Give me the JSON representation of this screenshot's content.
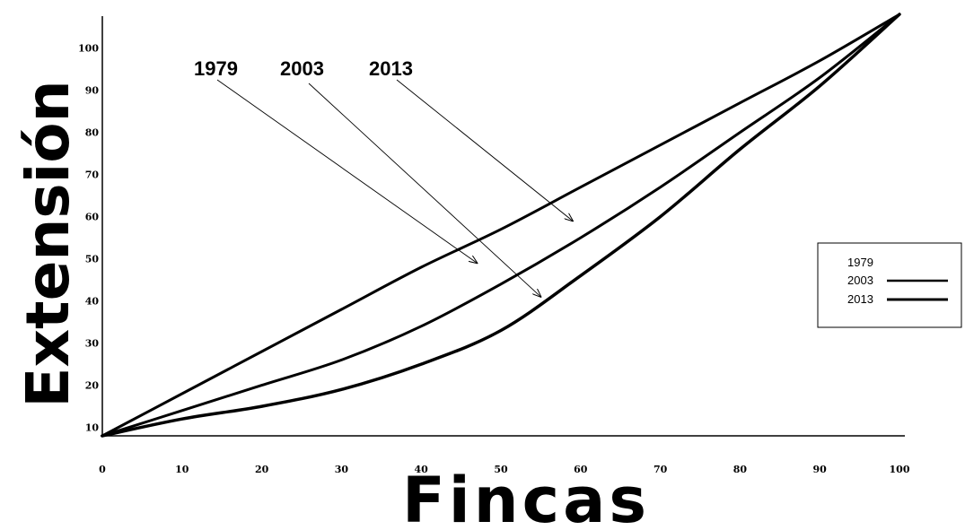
{
  "chart_data": {
    "type": "line",
    "xlabel": "Fincas",
    "ylabel": "Extensión",
    "xlim": [
      0,
      100
    ],
    "ylim": [
      8,
      108
    ],
    "x_ticks": [
      "0",
      "10",
      "20",
      "30",
      "40",
      "50",
      "60",
      "70",
      "80",
      "90",
      "100"
    ],
    "y_ticks": [
      "10",
      "20",
      "30",
      "40",
      "50",
      "60",
      "70",
      "80",
      "90",
      "100"
    ],
    "series": [
      {
        "name": "1979",
        "x": [
          0,
          10,
          20,
          30,
          40,
          50,
          60,
          70,
          80,
          90,
          100
        ],
        "y": [
          8,
          18,
          28,
          38,
          48,
          57,
          67,
          77,
          87,
          97,
          108
        ]
      },
      {
        "name": "2003",
        "x": [
          0,
          10,
          20,
          30,
          40,
          50,
          60,
          70,
          80,
          90,
          100
        ],
        "y": [
          8,
          14,
          20,
          26,
          34,
          44,
          55,
          67,
          80,
          93,
          108
        ]
      },
      {
        "name": "2013",
        "x": [
          0,
          10,
          20,
          30,
          40,
          50,
          60,
          70,
          80,
          90,
          100
        ],
        "y": [
          8,
          12,
          15,
          19,
          25,
          33,
          46,
          60,
          76,
          91,
          108
        ]
      }
    ],
    "annotations": [
      {
        "text": "1979",
        "target_x": 47,
        "target_y": 49
      },
      {
        "text": "2003",
        "target_x": 55,
        "target_y": 41
      },
      {
        "text": "2013",
        "target_x": 59,
        "target_y": 59
      }
    ],
    "legend": {
      "position": "right",
      "entries": [
        "1979",
        "2003",
        "2013"
      ]
    },
    "grid": false
  }
}
